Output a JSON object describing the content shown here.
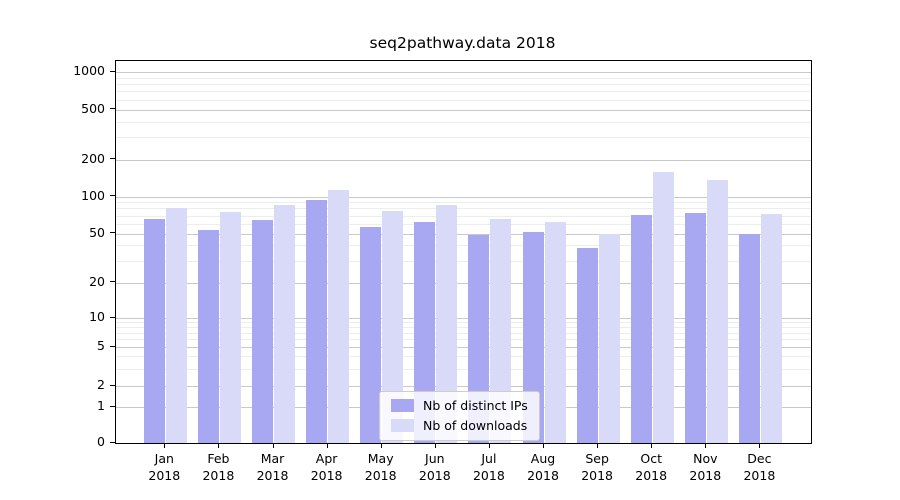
{
  "figure": {
    "title": "seq2pathway.data 2018"
  },
  "chart_data": {
    "type": "bar",
    "title": "seq2pathway.data 2018",
    "categories": [
      "Jan",
      "Feb",
      "Mar",
      "Apr",
      "May",
      "Jun",
      "Jul",
      "Aug",
      "Sep",
      "Oct",
      "Nov",
      "Dec"
    ],
    "category_year": "2018",
    "series": [
      {
        "name": "Nb of distinct IPs",
        "color": "#a7a7f2",
        "values": [
          66,
          53,
          64,
          93,
          56,
          62,
          49,
          51,
          38,
          71,
          74,
          50
        ]
      },
      {
        "name": "Nb of downloads",
        "color": "#d9d9f8",
        "values": [
          80,
          75,
          85,
          113,
          76,
          85,
          66,
          62,
          50,
          158,
          137,
          72
        ]
      }
    ],
    "yaxis": {
      "ticks": [
        0,
        1,
        2,
        5,
        10,
        20,
        50,
        100,
        200,
        500,
        1000
      ],
      "scale": "log-like",
      "range": [
        0,
        1000
      ]
    },
    "legend": {
      "position": "bottom-center",
      "entries": [
        "Nb of distinct IPs",
        "Nb of downloads"
      ]
    },
    "grid": {
      "horizontal": true,
      "minor_gridlines": true
    }
  },
  "colors": {
    "grid_major": "#c9c9c9",
    "grid_minor": "#ededed",
    "spine": "#000000",
    "text": "#000000"
  }
}
